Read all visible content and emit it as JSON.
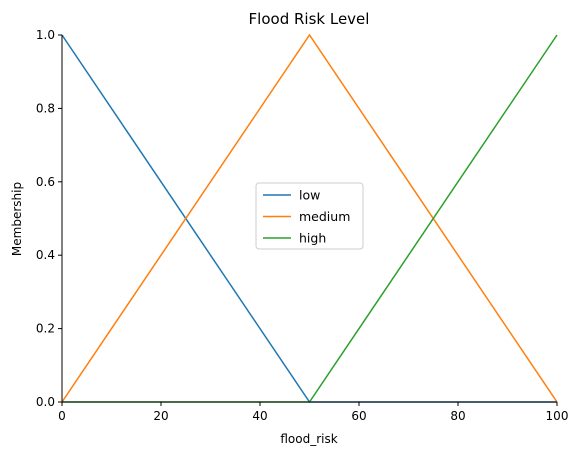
{
  "chart_data": {
    "type": "line",
    "title": "Flood Risk Level",
    "xlabel": "flood_risk",
    "ylabel": "Membership",
    "xlim": [
      0,
      100
    ],
    "ylim": [
      0,
      1
    ],
    "xticks": [
      0,
      20,
      40,
      60,
      80,
      100
    ],
    "yticks": [
      0.0,
      0.2,
      0.4,
      0.6,
      0.8,
      1.0
    ],
    "ytick_labels": [
      "0.0",
      "0.2",
      "0.4",
      "0.6",
      "0.8",
      "1.0"
    ],
    "grid": false,
    "legend_position": "center",
    "series": [
      {
        "name": "low",
        "color": "#1f77b4",
        "x": [
          0,
          50,
          100
        ],
        "y": [
          1,
          0,
          0
        ]
      },
      {
        "name": "medium",
        "color": "#ff7f0e",
        "x": [
          0,
          50,
          100
        ],
        "y": [
          0,
          1,
          0
        ]
      },
      {
        "name": "high",
        "color": "#2ca02c",
        "x": [
          0,
          50,
          100
        ],
        "y": [
          0,
          0,
          1
        ]
      }
    ]
  }
}
